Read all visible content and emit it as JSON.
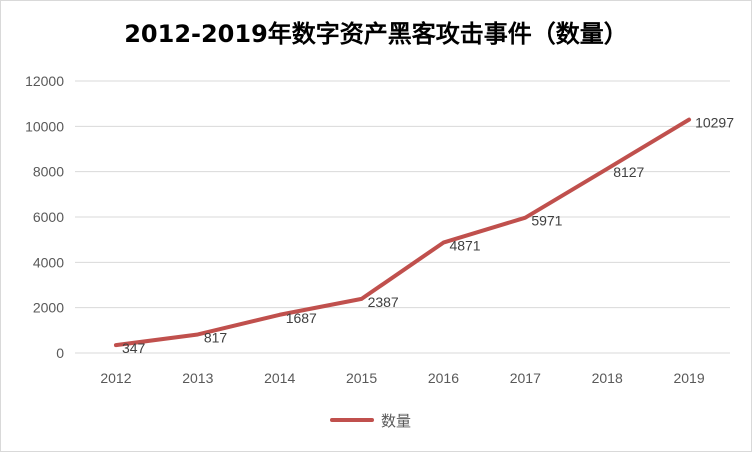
{
  "chart_data": {
    "type": "line",
    "title": "2012-2019年数字资产黑客攻击事件（数量）",
    "categories": [
      "2012",
      "2013",
      "2014",
      "2015",
      "2016",
      "2017",
      "2018",
      "2019"
    ],
    "series": [
      {
        "name": "数量",
        "values": [
          347,
          817,
          1687,
          2387,
          4871,
          5971,
          8127,
          10297
        ],
        "color": "#c0504d"
      }
    ],
    "yticks": [
      "0",
      "2000",
      "4000",
      "6000",
      "8000",
      "10000",
      "12000"
    ],
    "ylim": [
      0,
      12000
    ],
    "grid": true,
    "legend_position": "bottom"
  }
}
